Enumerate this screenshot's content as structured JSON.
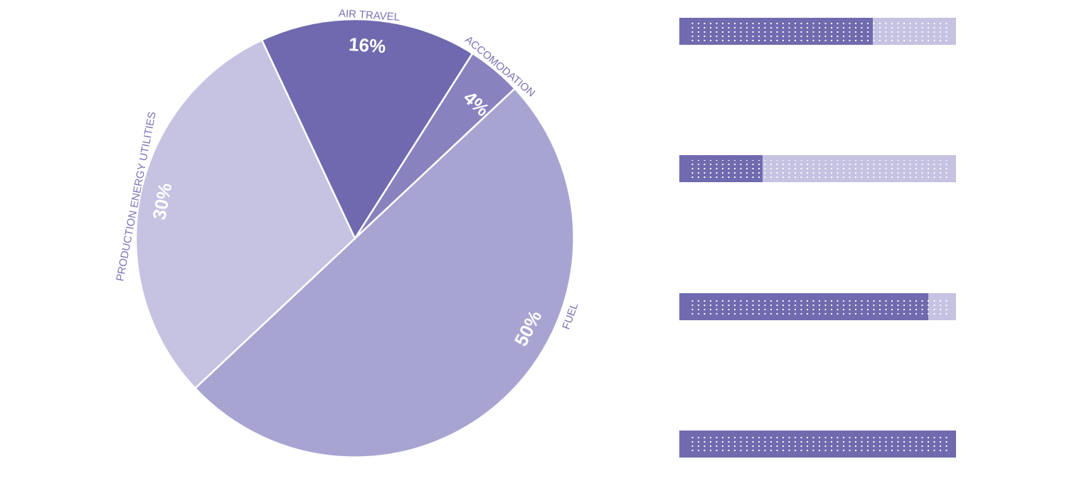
{
  "chart_data": [
    {
      "type": "pie",
      "slices": [
        {
          "label": "FUEL",
          "value": 50,
          "value_label": "50%",
          "color": "#a8a4d2"
        },
        {
          "label": "PRODUCTION ENERGY UTILITIES",
          "value": 30,
          "value_label": "30%",
          "color": "#c5c2e2"
        },
        {
          "label": "AIR TRAVEL",
          "value": 16,
          "value_label": "16%",
          "color": "#6f6aaf"
        },
        {
          "label": "ACCOMODATION",
          "value": 4,
          "value_label": "4%",
          "color": "#8882be"
        }
      ],
      "label_color": "#7a74b8",
      "value_label_color": "#ffffff"
    },
    {
      "type": "bar",
      "orientation": "horizontal",
      "stacked": true,
      "values": [
        0.7,
        0.3,
        0.9,
        1.0
      ],
      "fill_color": "#706bae",
      "track_color": "#c5c2e2",
      "dot_color": "#ffffff"
    }
  ]
}
